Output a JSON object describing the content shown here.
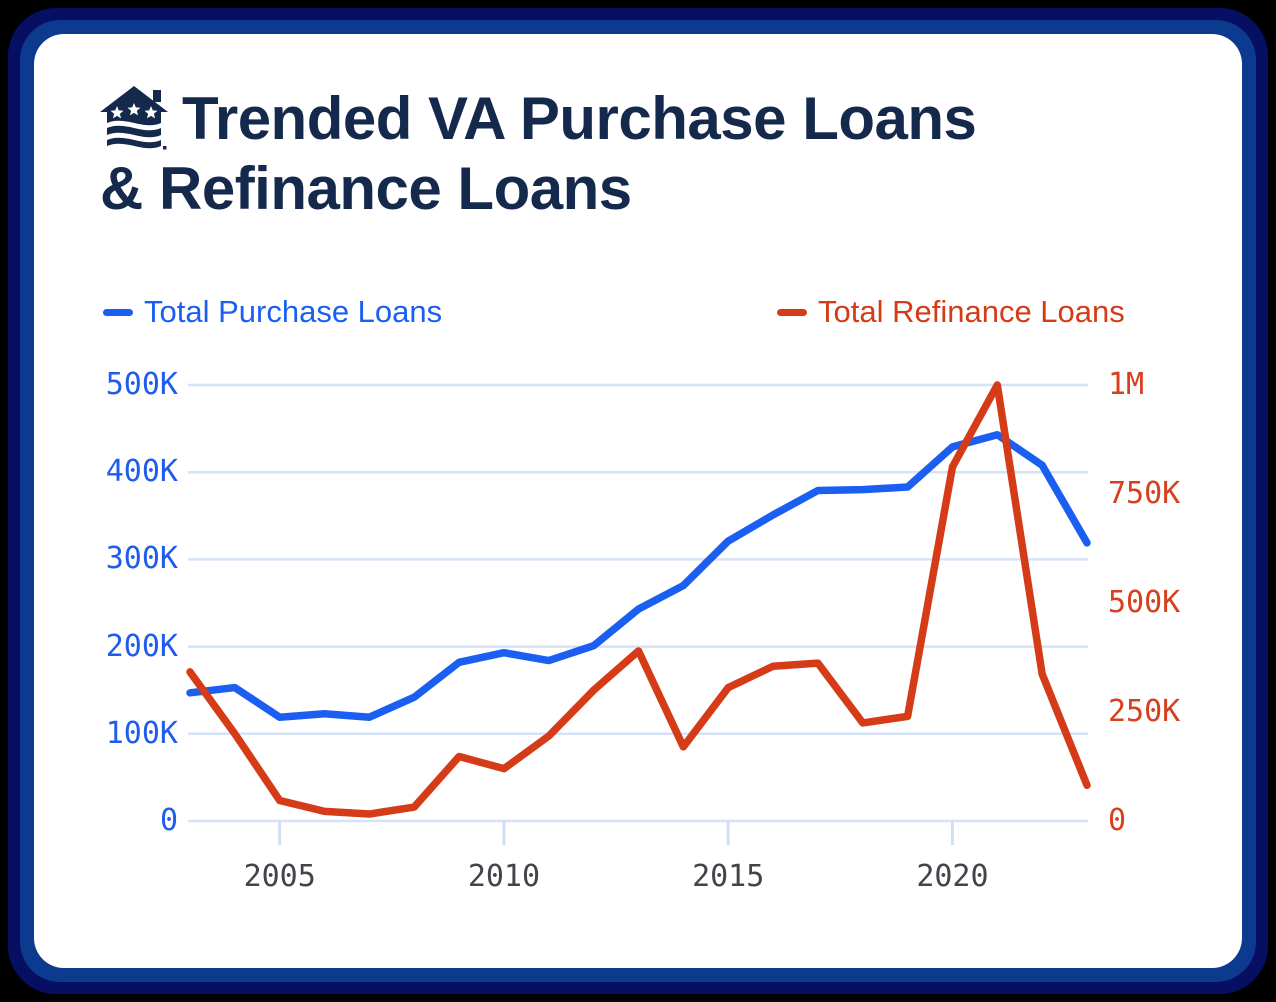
{
  "frame": {
    "outer_bg": "#000000",
    "border_outer_navy": "#070f63",
    "border_inner_blue": "#0c3a8e",
    "card_bg": "#ffffff"
  },
  "header": {
    "logo_icon": "house-flag-stars-logo",
    "title_line1": "Trended VA Purchase Loans",
    "title_line2": "& Refinance Loans",
    "title_color": "#15294c"
  },
  "legend": {
    "items": [
      {
        "label": "Total Purchase Loans",
        "color": "#1a5ff2"
      },
      {
        "label": "Total Refinance Loans",
        "color": "#d53b17"
      }
    ]
  },
  "chart_data": {
    "type": "line",
    "x": [
      2003,
      2004,
      2005,
      2006,
      2007,
      2008,
      2009,
      2010,
      2011,
      2012,
      2013,
      2014,
      2015,
      2016,
      2017,
      2018,
      2019,
      2020,
      2021,
      2022,
      2023
    ],
    "series": [
      {
        "name": "Total Purchase Loans",
        "axis": "left",
        "color": "#1a5ff2",
        "values": [
          147000,
          153000,
          119000,
          123000,
          119000,
          142000,
          182000,
          193000,
          184000,
          201000,
          243000,
          270000,
          321000,
          351000,
          379000,
          380000,
          383000,
          429000,
          443000,
          408000,
          319000
        ]
      },
      {
        "name": "Total Refinance Loans",
        "axis": "right",
        "color": "#d53b17",
        "values": [
          342000,
          200000,
          47000,
          22000,
          16000,
          32000,
          148000,
          120000,
          195000,
          300000,
          390000,
          170000,
          306000,
          355000,
          362000,
          225000,
          240000,
          812000,
          1000000,
          337000,
          82000
        ]
      }
    ],
    "axes": {
      "left": {
        "min": 0,
        "max": 500000,
        "color": "#1e5cf0",
        "ticks": [
          {
            "value": 500000,
            "label": "500K"
          },
          {
            "value": 400000,
            "label": "400K"
          },
          {
            "value": 300000,
            "label": "300K"
          },
          {
            "value": 200000,
            "label": "200K"
          },
          {
            "value": 100000,
            "label": "100K"
          },
          {
            "value": 0,
            "label": "0"
          }
        ]
      },
      "right": {
        "min": 0,
        "max": 1000000,
        "color": "#d6401d",
        "ticks": [
          {
            "value": 1000000,
            "label": "1M"
          },
          {
            "value": 750000,
            "label": "750K"
          },
          {
            "value": 500000,
            "label": "500K"
          },
          {
            "value": 250000,
            "label": "250K"
          },
          {
            "value": 0,
            "label": "0"
          }
        ]
      },
      "x": {
        "range": [
          2003,
          2023
        ],
        "color": "#41454a",
        "ticks": [
          {
            "value": 2005,
            "label": "2005"
          },
          {
            "value": 2010,
            "label": "2010"
          },
          {
            "value": 2015,
            "label": "2015"
          },
          {
            "value": 2020,
            "label": "2020"
          }
        ]
      }
    },
    "grid": {
      "on": true,
      "color": "#d5e3f8",
      "tick_mark_color": "#cfe0f5"
    },
    "legend_position": "top",
    "title": "Trended VA Purchase Loans & Refinance Loans"
  }
}
